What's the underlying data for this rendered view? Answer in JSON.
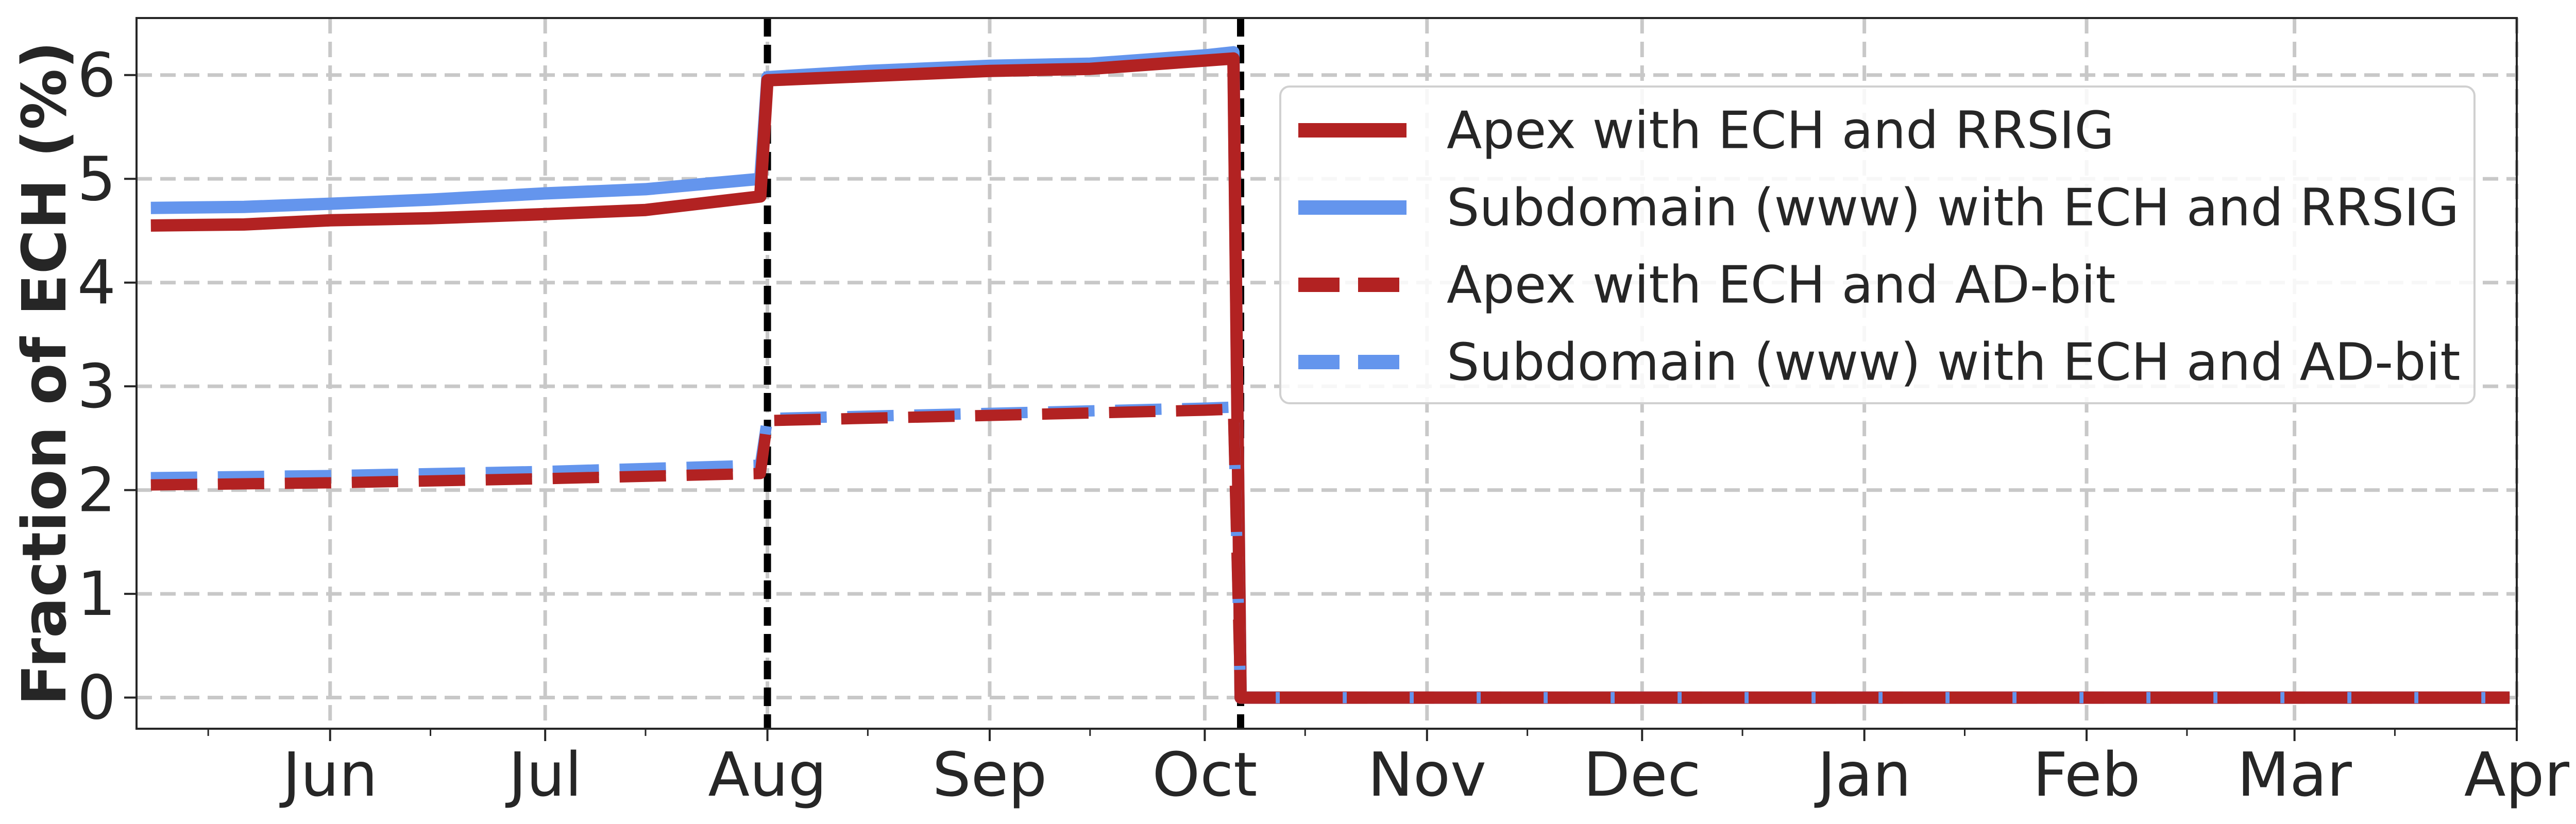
{
  "chart_data": {
    "type": "line",
    "title": "",
    "xlabel": "",
    "ylabel": "Fraction of ECH (%)",
    "x_range": [
      "2023-05-05",
      "2024-04-01"
    ],
    "ylim": [
      -0.3,
      6.55
    ],
    "x_ticks": [
      {
        "date": "2023-06-01",
        "label": "Jun"
      },
      {
        "date": "2023-07-01",
        "label": "Jul"
      },
      {
        "date": "2023-08-01",
        "label": "Aug"
      },
      {
        "date": "2023-09-01",
        "label": "Sep"
      },
      {
        "date": "2023-10-01",
        "label": "Oct"
      },
      {
        "date": "2023-11-01",
        "label": "Nov"
      },
      {
        "date": "2023-12-01",
        "label": "Dec"
      },
      {
        "date": "2024-01-01",
        "label": "Jan"
      },
      {
        "date": "2024-02-01",
        "label": "Feb"
      },
      {
        "date": "2024-03-01",
        "label": "Mar"
      },
      {
        "date": "2024-04-01",
        "label": "Apr"
      }
    ],
    "y_ticks": [
      0,
      1,
      2,
      3,
      4,
      5,
      6
    ],
    "grid": true,
    "legend_position": "top-right",
    "vertical_markers": [
      "2023-08-01",
      "2023-10-06"
    ],
    "series": [
      {
        "name": "Apex with ECH and RRSIG",
        "color": "#b22222",
        "style": "solid",
        "points": [
          [
            "2023-05-07",
            4.55
          ],
          [
            "2023-05-20",
            4.56
          ],
          [
            "2023-06-01",
            4.6
          ],
          [
            "2023-06-15",
            4.62
          ],
          [
            "2023-07-01",
            4.66
          ],
          [
            "2023-07-15",
            4.7
          ],
          [
            "2023-07-31",
            4.83
          ],
          [
            "2023-08-01",
            5.95
          ],
          [
            "2023-08-15",
            5.99
          ],
          [
            "2023-09-01",
            6.04
          ],
          [
            "2023-09-15",
            6.06
          ],
          [
            "2023-10-01",
            6.14
          ],
          [
            "2023-10-05",
            6.16
          ],
          [
            "2023-10-06",
            0.0
          ],
          [
            "2024-03-31",
            0.0
          ]
        ]
      },
      {
        "name": "Subdomain (www) with ECH and RRSIG",
        "color": "#6495ed",
        "style": "solid",
        "points": [
          [
            "2023-05-07",
            4.72
          ],
          [
            "2023-05-20",
            4.73
          ],
          [
            "2023-06-01",
            4.76
          ],
          [
            "2023-06-15",
            4.8
          ],
          [
            "2023-07-01",
            4.86
          ],
          [
            "2023-07-15",
            4.9
          ],
          [
            "2023-07-31",
            5.0
          ],
          [
            "2023-08-01",
            5.98
          ],
          [
            "2023-08-15",
            6.04
          ],
          [
            "2023-09-01",
            6.09
          ],
          [
            "2023-09-15",
            6.11
          ],
          [
            "2023-10-01",
            6.19
          ],
          [
            "2023-10-05",
            6.22
          ],
          [
            "2023-10-06",
            0.0
          ],
          [
            "2024-03-31",
            0.0
          ]
        ]
      },
      {
        "name": "Apex with ECH and AD-bit",
        "color": "#b22222",
        "style": "dashed",
        "points": [
          [
            "2023-05-07",
            2.05
          ],
          [
            "2023-06-01",
            2.07
          ],
          [
            "2023-07-01",
            2.11
          ],
          [
            "2023-07-31",
            2.16
          ],
          [
            "2023-08-01",
            2.67
          ],
          [
            "2023-09-01",
            2.72
          ],
          [
            "2023-10-01",
            2.77
          ],
          [
            "2023-10-05",
            2.78
          ],
          [
            "2023-10-06",
            0.0
          ],
          [
            "2024-03-31",
            0.0
          ]
        ]
      },
      {
        "name": "Subdomain (www) with ECH and AD-bit",
        "color": "#6495ed",
        "style": "dashed",
        "points": [
          [
            "2023-05-07",
            2.12
          ],
          [
            "2023-06-01",
            2.14
          ],
          [
            "2023-07-01",
            2.18
          ],
          [
            "2023-07-31",
            2.24
          ],
          [
            "2023-08-01",
            2.69
          ],
          [
            "2023-09-01",
            2.74
          ],
          [
            "2023-10-01",
            2.79
          ],
          [
            "2023-10-05",
            2.8
          ],
          [
            "2023-10-06",
            0.0
          ],
          [
            "2024-03-31",
            0.0
          ]
        ]
      }
    ]
  }
}
